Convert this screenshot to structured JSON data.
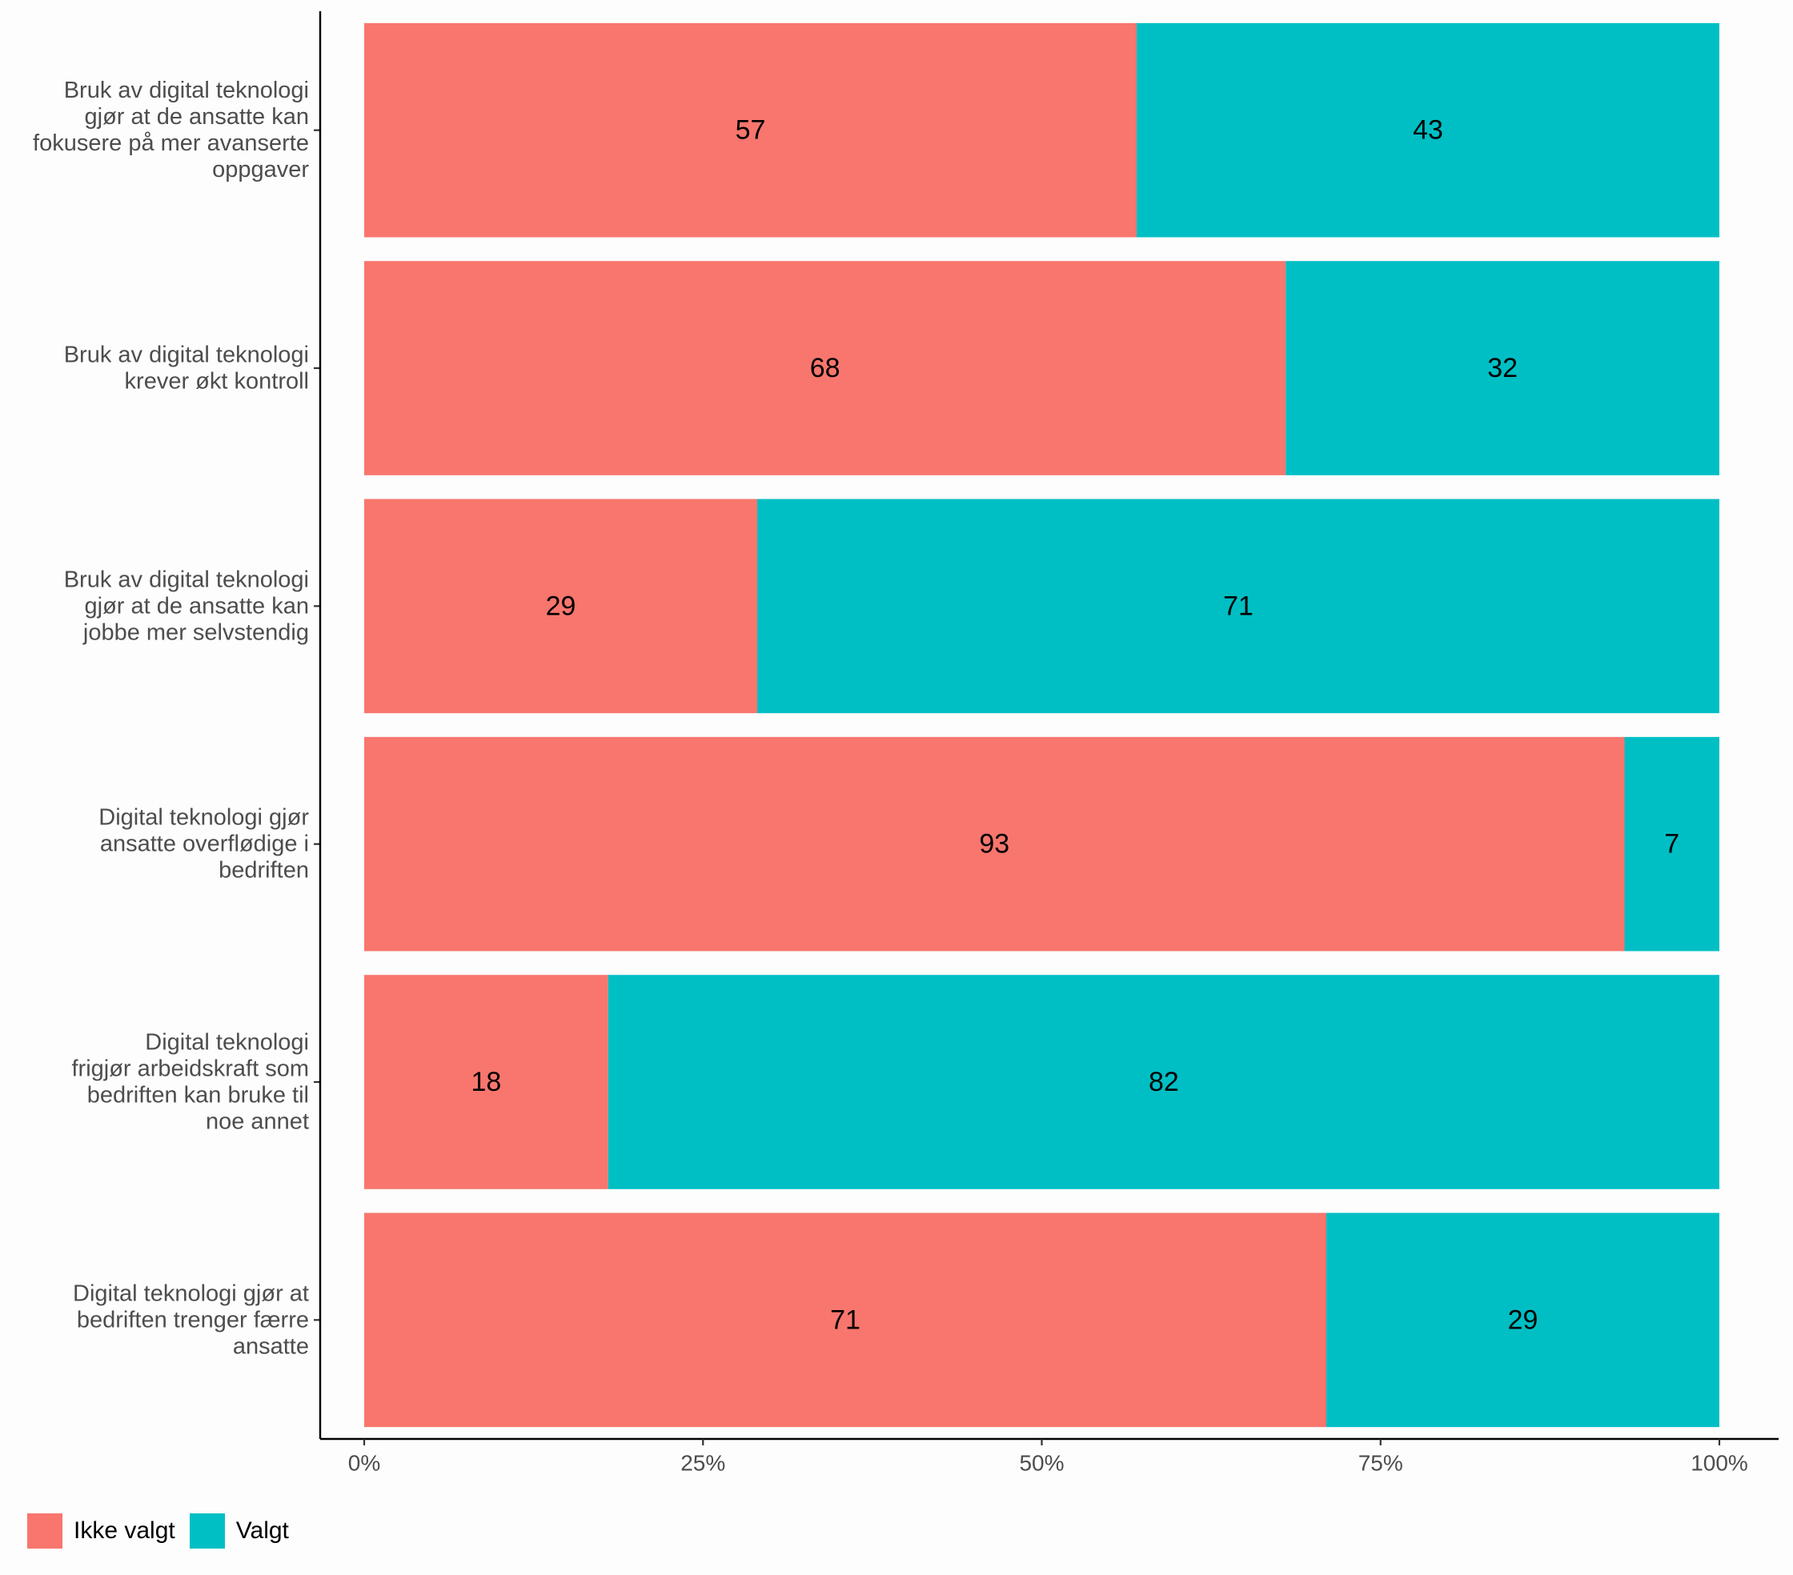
{
  "chart_data": {
    "type": "bar",
    "orientation": "horizontal",
    "stacked": true,
    "percent_scale": true,
    "categories": [
      [
        "Bruk av digital teknologi",
        "gjør at de ansatte kan",
        "fokusere på mer avanserte",
        "oppgaver"
      ],
      [
        "Bruk av digital teknologi",
        "krever økt kontroll"
      ],
      [
        "Bruk av digital teknologi",
        "gjør at de ansatte kan",
        "jobbe mer selvstendig"
      ],
      [
        "Digital teknologi gjør",
        "ansatte overflødige i",
        "bedriften"
      ],
      [
        "Digital teknologi",
        "frigjør arbeidskraft som",
        "bedriften kan bruke til",
        "noe annet"
      ],
      [
        "Digital teknologi gjør at",
        "bedriften trenger færre",
        "ansatte"
      ]
    ],
    "series": [
      {
        "name": "Ikke valgt",
        "color": "#F8766D",
        "values": [
          57,
          68,
          29,
          93,
          18,
          71
        ]
      },
      {
        "name": "Valgt",
        "color": "#00BFC4",
        "values": [
          43,
          32,
          71,
          7,
          82,
          29
        ]
      }
    ],
    "x_ticks": [
      "0%",
      "25%",
      "50%",
      "75%",
      "100%"
    ],
    "xlim": [
      0,
      100
    ],
    "xlabel": "",
    "ylabel": "",
    "title": "",
    "grid": false,
    "legend_position": "bottom-left"
  }
}
